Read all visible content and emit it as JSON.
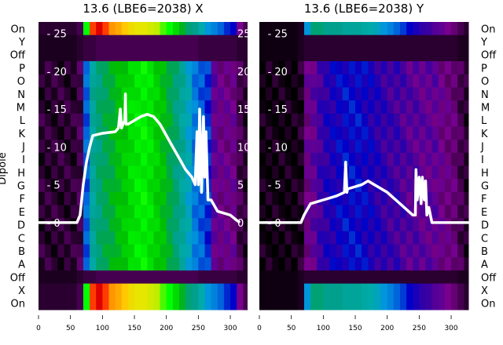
{
  "chart_data": {
    "type": "heatmap",
    "ylabel": "Dipole",
    "row_labels": [
      "On",
      "Y",
      "Off",
      "P",
      "O",
      "N",
      "M",
      "L",
      "K",
      "J",
      "I",
      "H",
      "G",
      "F",
      "E",
      "D",
      "C",
      "B",
      "A",
      "Off",
      "X",
      "On"
    ],
    "row_kinds": [
      "on",
      "off",
      "off",
      "d",
      "d",
      "d",
      "d",
      "d",
      "d",
      "d",
      "d",
      "d",
      "d",
      "d",
      "d",
      "d",
      "d",
      "d",
      "d",
      "off",
      "on",
      "on"
    ],
    "x": [
      0,
      10,
      20,
      30,
      40,
      50,
      60,
      70,
      80,
      90,
      100,
      110,
      120,
      130,
      140,
      150,
      160,
      170,
      180,
      190,
      200,
      210,
      220,
      230,
      240,
      250,
      260,
      270,
      280,
      290,
      300,
      310,
      320,
      330
    ],
    "xlim": [
      0,
      327
    ],
    "xticks": [
      0,
      50,
      100,
      150,
      200,
      250,
      300
    ],
    "inner_ylim": [
      -11.5,
      26.5
    ],
    "inner_yticks": [
      0,
      5,
      10,
      15,
      20,
      25
    ],
    "colormap": "nipy_spectral",
    "panels": [
      {
        "title": "13.6 (LBE6=2038) X",
        "profiles": {
          "d": [
            0.03,
            0.03,
            0.03,
            0.03,
            0.03,
            0.03,
            0.05,
            0.25,
            0.38,
            0.42,
            0.45,
            0.47,
            0.5,
            0.52,
            0.55,
            0.57,
            0.58,
            0.56,
            0.53,
            0.5,
            0.46,
            0.42,
            0.38,
            0.33,
            0.27,
            0.25,
            0.22,
            0.12,
            0.1,
            0.1,
            0.1,
            0.05,
            0.03,
            0.03
          ],
          "on": [
            0.03,
            0.03,
            0.03,
            0.03,
            0.03,
            0.03,
            0.05,
            0.6,
            0.85,
            0.9,
            0.85,
            0.8,
            0.78,
            0.75,
            0.72,
            0.7,
            0.7,
            0.68,
            0.66,
            0.62,
            0.6,
            0.55,
            0.48,
            0.42,
            0.4,
            0.35,
            0.3,
            0.28,
            0.25,
            0.22,
            0.2,
            0.1,
            0.05,
            0.03
          ],
          "off": [
            0.02,
            0.02,
            0.02,
            0.02,
            0.02,
            0.02,
            0.03,
            0.04,
            0.04,
            0.05,
            0.05,
            0.05,
            0.05,
            0.05,
            0.05,
            0.05,
            0.05,
            0.05,
            0.05,
            0.05,
            0.05,
            0.05,
            0.05,
            0.05,
            0.05,
            0.04,
            0.04,
            0.04,
            0.04,
            0.04,
            0.04,
            0.03,
            0.03,
            0.03
          ]
        },
        "line_x": [
          0,
          60,
          65,
          70,
          75,
          80,
          85,
          100,
          120,
          125,
          128,
          130,
          132,
          135,
          136,
          137,
          140,
          160,
          170,
          180,
          190,
          200,
          210,
          220,
          230,
          240,
          245,
          248,
          250,
          252,
          255,
          258,
          260,
          262,
          265,
          270,
          280,
          300,
          310,
          315
        ],
        "line_y": [
          0,
          0,
          1,
          5,
          8,
          10,
          11.5,
          11.8,
          12,
          12.5,
          15,
          12.5,
          13,
          13.5,
          17,
          13,
          13,
          14,
          14.3,
          14,
          13,
          11.5,
          10,
          8.5,
          7,
          6,
          5,
          12,
          5,
          15,
          4,
          14,
          6,
          12,
          3,
          3,
          1.5,
          1,
          0.3,
          0
        ]
      },
      {
        "title": "13.6 (LBE6=2038) Y",
        "profiles": {
          "d": [
            0.01,
            0.01,
            0.01,
            0.01,
            0.01,
            0.01,
            0.02,
            0.1,
            0.12,
            0.15,
            0.17,
            0.18,
            0.19,
            0.2,
            0.2,
            0.2,
            0.19,
            0.18,
            0.17,
            0.16,
            0.15,
            0.15,
            0.14,
            0.13,
            0.13,
            0.12,
            0.12,
            0.12,
            0.1,
            0.09,
            0.08,
            0.05,
            0.03,
            0.02
          ],
          "on": [
            0.01,
            0.01,
            0.01,
            0.01,
            0.01,
            0.01,
            0.02,
            0.3,
            0.42,
            0.42,
            0.4,
            0.4,
            0.4,
            0.38,
            0.38,
            0.38,
            0.36,
            0.35,
            0.33,
            0.3,
            0.28,
            0.25,
            0.23,
            0.2,
            0.18,
            0.16,
            0.15,
            0.13,
            0.12,
            0.1,
            0.08,
            0.05,
            0.03,
            0.02
          ],
          "off": [
            0.01,
            0.01,
            0.01,
            0.01,
            0.01,
            0.01,
            0.02,
            0.03,
            0.03,
            0.03,
            0.03,
            0.03,
            0.03,
            0.03,
            0.03,
            0.03,
            0.03,
            0.03,
            0.03,
            0.03,
            0.03,
            0.03,
            0.03,
            0.03,
            0.03,
            0.03,
            0.03,
            0.03,
            0.03,
            0.03,
            0.03,
            0.02,
            0.02,
            0.02
          ]
        },
        "line_x": [
          0,
          65,
          70,
          80,
          100,
          120,
          133,
          135,
          137,
          138,
          140,
          160,
          170,
          180,
          200,
          220,
          240,
          244,
          245,
          247,
          250,
          253,
          255,
          258,
          260,
          262,
          265,
          270,
          330
        ],
        "line_y": [
          0,
          0,
          1,
          2.5,
          3,
          3.5,
          4,
          8,
          4,
          4.5,
          4.5,
          5,
          5.5,
          5,
          4,
          2.5,
          1,
          1,
          7,
          3,
          6,
          2.5,
          6,
          3,
          5.5,
          1,
          2,
          0,
          0
        ]
      }
    ]
  }
}
